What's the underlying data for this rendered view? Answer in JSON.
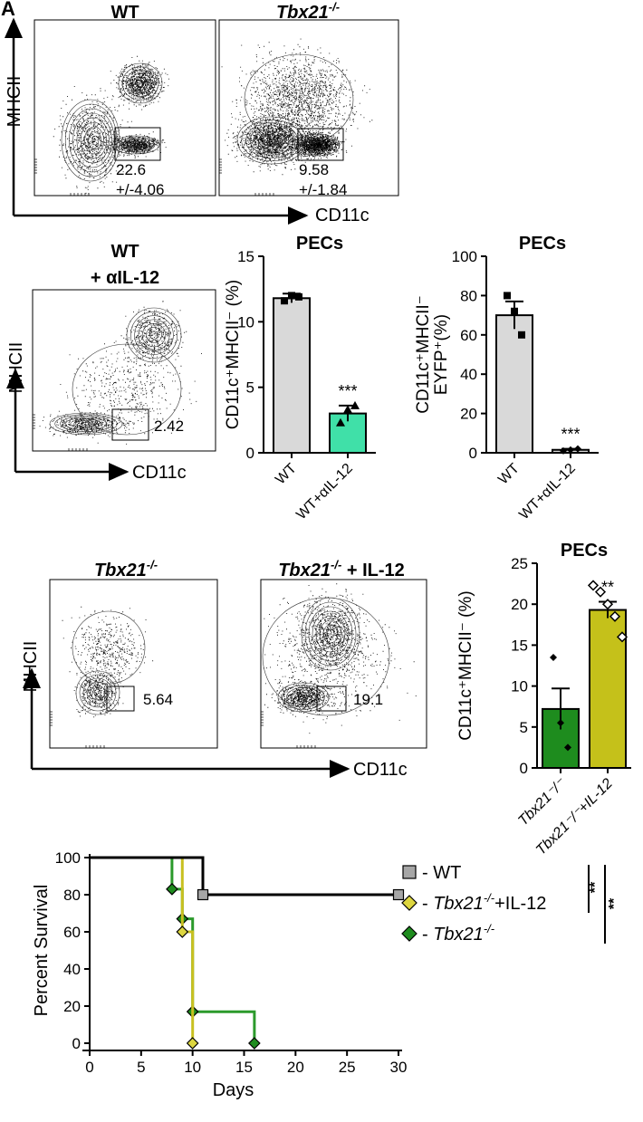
{
  "panel_a": {
    "label": "A",
    "plots": [
      {
        "title": "WT",
        "title_italic": false,
        "gate_value": "22.6",
        "gate_sd": "+/-4.06",
        "density": "medium"
      },
      {
        "title": "Tbx21",
        "title_sup": "-/-",
        "title_italic": true,
        "gate_value": "9.58",
        "gate_sd": "+/-1.84",
        "density": "high"
      }
    ],
    "y_axis_label": "MHCII",
    "x_axis_label": "CD11c"
  },
  "panel_b_flow": {
    "title_line1": "WT",
    "title_line2": "+ αIL-12",
    "gate_value": "2.42",
    "y_axis_label": "MHCII",
    "x_axis_label": "CD11c"
  },
  "panel_d_flow": {
    "plots": [
      {
        "title": "Tbx21",
        "title_sup": "-/-",
        "title_suffix": "",
        "gate_value": "5.64"
      },
      {
        "title": "Tbx21",
        "title_sup": "-/-",
        "title_suffix": " + IL-12",
        "gate_value": "19.1"
      }
    ],
    "y_axis_label": "MHCII",
    "x_axis_label": "CD11c"
  },
  "chart_data": [
    {
      "type": "bar",
      "title": "PECs",
      "ylabel": "CD11c⁺MHCII⁻ (%)",
      "ylim": [
        0,
        15
      ],
      "yticks": [
        "0",
        "5",
        "10",
        "15"
      ],
      "categories": [
        "WT",
        "WT+αIL-12"
      ],
      "values": [
        11.8,
        3.0
      ],
      "errors": [
        0.35,
        0.6
      ],
      "points": [
        [
          11.6,
          12.0,
          11.9
        ],
        [
          2.3,
          3.3,
          3.6
        ]
      ],
      "colors": [
        "#d9d9d9",
        "#40e0a8"
      ],
      "annotations": [
        "",
        "***"
      ]
    },
    {
      "type": "bar",
      "title": "PECs",
      "ylabel_line1": "CD11c⁺MHCII⁻",
      "ylabel_line2": "EYFP⁺(%)",
      "ylim": [
        0,
        100
      ],
      "yticks": [
        "0",
        "20",
        "40",
        "60",
        "80",
        "100"
      ],
      "categories": [
        "WT",
        "WT+αIL-12"
      ],
      "values": [
        70,
        1.5
      ],
      "errors": [
        7,
        0.5
      ],
      "points": [
        [
          80,
          72,
          60
        ],
        [
          1.0,
          1.5,
          2.0
        ]
      ],
      "colors": [
        "#d9d9d9",
        "#d9d9d9"
      ],
      "annotations": [
        "",
        "***"
      ]
    },
    {
      "type": "bar",
      "title": "PECs",
      "ylabel": "CD11c⁺MHCII⁻ (%)",
      "ylim": [
        0,
        25
      ],
      "yticks": [
        "0",
        "5",
        "10",
        "15",
        "20",
        "25"
      ],
      "categories": [
        "Tbx21⁻/⁻",
        "Tbx21⁻/⁻+IL-12"
      ],
      "values": [
        7.2,
        19.3
      ],
      "errors": [
        2.5,
        1.0
      ],
      "points": [
        [
          13.5,
          5.5,
          2.5
        ],
        [
          22.3,
          21.5,
          20.0,
          18.5,
          16.0
        ]
      ],
      "colors": [
        "#1e8c1e",
        "#c5c11a"
      ],
      "annotations": [
        "",
        "**"
      ]
    },
    {
      "type": "line",
      "subtype": "kaplan-meier",
      "xlabel": "Days",
      "ylabel": "Percent Survival",
      "xlim": [
        0,
        30
      ],
      "ylim": [
        0,
        100
      ],
      "xticks": [
        "0",
        "5",
        "10",
        "15",
        "20",
        "25",
        "30"
      ],
      "yticks": [
        "0",
        "20",
        "40",
        "60",
        "80",
        "100"
      ],
      "series": [
        {
          "name": "WT",
          "color": "#000000",
          "marker_color": "#a6a6a6",
          "marker": "square",
          "steps": [
            [
              0,
              100
            ],
            [
              11,
              100
            ],
            [
              11,
              80
            ],
            [
              30,
              80
            ]
          ],
          "markers": [
            [
              11,
              80
            ],
            [
              30,
              80
            ]
          ]
        },
        {
          "name": "Tbx21-/-+IL-12",
          "color": "#c8c020",
          "marker_color": "#ddd640",
          "marker": "diamond",
          "steps": [
            [
              0,
              100
            ],
            [
              9,
              100
            ],
            [
              9,
              60
            ],
            [
              10,
              60
            ],
            [
              10,
              0
            ]
          ],
          "markers": [
            [
              9,
              60
            ],
            [
              10,
              0
            ]
          ]
        },
        {
          "name": "Tbx21-/-",
          "color": "#2b9a2b",
          "marker_color": "#1e8c1e",
          "marker": "diamond",
          "steps": [
            [
              0,
              100
            ],
            [
              8,
              100
            ],
            [
              8,
              83
            ],
            [
              9,
              83
            ],
            [
              9,
              67
            ],
            [
              10,
              67
            ],
            [
              10,
              17
            ],
            [
              16,
              17
            ],
            [
              16,
              0
            ]
          ],
          "markers": [
            [
              8,
              83
            ],
            [
              9,
              67
            ],
            [
              10,
              17
            ],
            [
              16,
              0
            ]
          ]
        }
      ],
      "legend": [
        {
          "prefix": "- ",
          "text": "WT",
          "italic": false,
          "sup": "",
          "suffix": ""
        },
        {
          "prefix": "- ",
          "text": "Tbx21",
          "italic": true,
          "sup": "-/-",
          "suffix": "+IL-12"
        },
        {
          "prefix": "- ",
          "text": "Tbx21",
          "italic": true,
          "sup": "-/-",
          "suffix": ""
        }
      ],
      "significance": [
        "**",
        "**"
      ]
    }
  ]
}
